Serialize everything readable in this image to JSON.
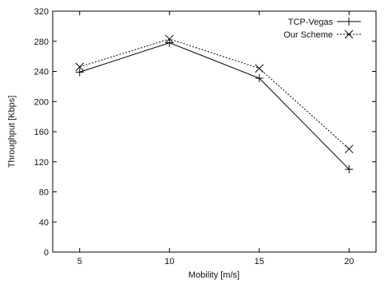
{
  "chart_data": {
    "type": "line",
    "title": "",
    "xlabel": "Mobility [m/s]",
    "ylabel": "Throughput [Kbps]",
    "x": [
      5,
      10,
      15,
      20
    ],
    "x_ticks": [
      5,
      10,
      15,
      20
    ],
    "xlim": [
      3.5,
      21.5
    ],
    "ylim": [
      0,
      320
    ],
    "y_ticks": [
      0,
      40,
      80,
      120,
      160,
      200,
      240,
      280,
      320
    ],
    "grid": false,
    "legend_position": "top-right",
    "series": [
      {
        "name": "TCP-Vegas",
        "values": [
          239,
          278,
          231,
          110
        ],
        "marker": "plus",
        "line_style": "solid",
        "color": "#000000"
      },
      {
        "name": "Our Scheme",
        "values": [
          246,
          283,
          244,
          137
        ],
        "marker": "cross",
        "line_style": "dotted",
        "color": "#000000"
      }
    ]
  }
}
